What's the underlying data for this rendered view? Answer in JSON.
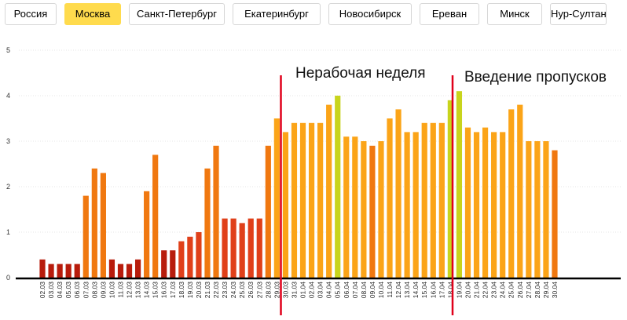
{
  "tabs": [
    {
      "label": "Россия",
      "active": false
    },
    {
      "label": "Москва",
      "active": true
    },
    {
      "label": "Санкт-Петербург",
      "active": false
    },
    {
      "label": "Екатеринбург",
      "active": false
    },
    {
      "label": "Новосибирск",
      "active": false
    },
    {
      "label": "Ереван",
      "active": false
    },
    {
      "label": "Минск",
      "active": false
    },
    {
      "label": "Нур-Султан",
      "active": false
    }
  ],
  "chart_data": {
    "type": "bar",
    "title": "",
    "xlabel": "",
    "ylabel": "",
    "ylim": [
      0,
      5
    ],
    "yticks": [
      0,
      1,
      2,
      3,
      4,
      5
    ],
    "grid": true,
    "categories": [
      "02.03",
      "03.03",
      "04.03",
      "05.03",
      "06.03",
      "07.03",
      "08.03",
      "09.03",
      "10.03",
      "11.03",
      "12.03",
      "13.03",
      "14.03",
      "15.03",
      "16.03",
      "17.03",
      "18.03",
      "19.03",
      "20.03",
      "21.03",
      "22.03",
      "23.03",
      "24.03",
      "25.03",
      "26.03",
      "27.03",
      "28.03",
      "29.03",
      "30.03",
      "31.03",
      "01.04",
      "02.04",
      "03.04",
      "04.04",
      "05.04",
      "06.04",
      "07.04",
      "08.04",
      "09.04",
      "10.04",
      "11.04",
      "12.04",
      "13.04",
      "14.04",
      "15.04",
      "16.04",
      "17.04",
      "18.04",
      "19.04",
      "20.04",
      "21.04",
      "22.04",
      "23.04",
      "24.04",
      "25.04",
      "26.04",
      "27.04",
      "28.04",
      "29.04",
      "30.04"
    ],
    "values": [
      0.4,
      0.3,
      0.3,
      0.3,
      0.3,
      1.8,
      2.4,
      2.3,
      0.4,
      0.3,
      0.3,
      0.4,
      1.9,
      2.7,
      0.6,
      0.6,
      0.8,
      0.9,
      1.0,
      2.4,
      2.9,
      1.3,
      1.3,
      1.2,
      1.3,
      1.3,
      2.9,
      3.5,
      3.2,
      3.4,
      3.4,
      3.4,
      3.4,
      3.8,
      4.0,
      3.1,
      3.1,
      3.0,
      2.9,
      3.0,
      3.5,
      3.7,
      3.2,
      3.2,
      3.4,
      3.4,
      3.4,
      3.9,
      4.1,
      3.3,
      3.2,
      3.3,
      3.2,
      3.2,
      3.7,
      3.8,
      3.0,
      3.0,
      3.0,
      2.8
    ],
    "colors": {
      "low": "#b81c0c",
      "mid_low": "#e0401a",
      "mid": "#f07810",
      "high": "#fba418",
      "top": "#c8d41c",
      "marker": "#e0001a"
    },
    "annotations": [
      {
        "text": "Нерабочая неделя",
        "at": "28.03"
      },
      {
        "text": "Введение пропусков",
        "at": "15.04"
      }
    ]
  }
}
